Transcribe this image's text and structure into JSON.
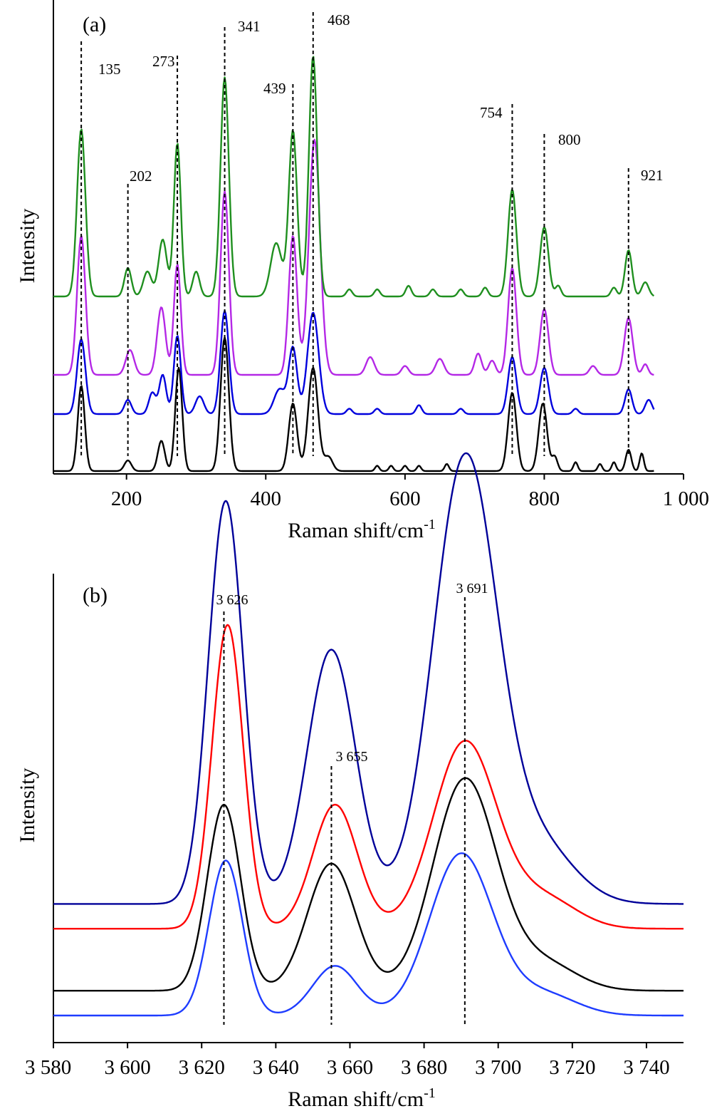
{
  "chart_data": [
    {
      "type": "line",
      "panel_label": "(a)",
      "xlabel": "Raman shift/cm",
      "xlabel_sup": "-1",
      "ylabel": "Intensity",
      "xlim": [
        95,
        1000
      ],
      "xticks": [
        200,
        400,
        600,
        800,
        1000
      ],
      "xtick_labels": [
        "200",
        "400",
        "600",
        "800",
        "1 000"
      ],
      "peak_marks": [
        {
          "x": 135,
          "label": "135"
        },
        {
          "x": 202,
          "label": "202"
        },
        {
          "x": 273,
          "label": "273"
        },
        {
          "x": 341,
          "label": "341"
        },
        {
          "x": 439,
          "label": "439"
        },
        {
          "x": 468,
          "label": "468"
        },
        {
          "x": 754,
          "label": "754"
        },
        {
          "x": 800,
          "label": "800"
        },
        {
          "x": 921,
          "label": "921"
        }
      ],
      "series": [
        {
          "color": "#000000",
          "baseline": 0.0,
          "peaks": [
            [
              135,
              0.48,
              5
            ],
            [
              202,
              0.06,
              5
            ],
            [
              250,
              0.17,
              5
            ],
            [
              275,
              0.58,
              5
            ],
            [
              341,
              0.75,
              6
            ],
            [
              439,
              0.38,
              6
            ],
            [
              468,
              0.58,
              7
            ],
            [
              490,
              0.08,
              6
            ],
            [
              560,
              0.03,
              3
            ],
            [
              580,
              0.03,
              3
            ],
            [
              600,
              0.03,
              3
            ],
            [
              620,
              0.03,
              3
            ],
            [
              660,
              0.04,
              3
            ],
            [
              754,
              0.44,
              6
            ],
            [
              798,
              0.38,
              6
            ],
            [
              815,
              0.08,
              4
            ],
            [
              845,
              0.05,
              3
            ],
            [
              880,
              0.04,
              3
            ],
            [
              900,
              0.05,
              3
            ],
            [
              921,
              0.12,
              4
            ],
            [
              940,
              0.1,
              3
            ],
            [
              965,
              0.04,
              3
            ]
          ]
        },
        {
          "color": "#0000dd",
          "baseline": 0.32,
          "peaks": [
            [
              135,
              0.42,
              6
            ],
            [
              202,
              0.08,
              5
            ],
            [
              237,
              0.12,
              5
            ],
            [
              252,
              0.22,
              5
            ],
            [
              273,
              0.44,
              5
            ],
            [
              305,
              0.1,
              6
            ],
            [
              341,
              0.58,
              6
            ],
            [
              420,
              0.14,
              8
            ],
            [
              439,
              0.37,
              6
            ],
            [
              468,
              0.57,
              8
            ],
            [
              520,
              0.03,
              4
            ],
            [
              560,
              0.03,
              4
            ],
            [
              620,
              0.05,
              4
            ],
            [
              680,
              0.03,
              4
            ],
            [
              754,
              0.32,
              6
            ],
            [
              800,
              0.26,
              6
            ],
            [
              845,
              0.03,
              4
            ],
            [
              921,
              0.14,
              5
            ],
            [
              950,
              0.08,
              5
            ],
            [
              980,
              0.05,
              5
            ]
          ]
        },
        {
          "color": "#b428e6",
          "baseline": 0.54,
          "peaks": [
            [
              135,
              0.78,
              6
            ],
            [
              205,
              0.14,
              6
            ],
            [
              250,
              0.38,
              6
            ],
            [
              273,
              0.62,
              5
            ],
            [
              341,
              1.03,
              6
            ],
            [
              439,
              0.78,
              6
            ],
            [
              470,
              1.32,
              8
            ],
            [
              550,
              0.1,
              6
            ],
            [
              600,
              0.05,
              5
            ],
            [
              650,
              0.09,
              6
            ],
            [
              705,
              0.12,
              5
            ],
            [
              725,
              0.08,
              5
            ],
            [
              754,
              0.6,
              6
            ],
            [
              800,
              0.37,
              6
            ],
            [
              870,
              0.05,
              5
            ],
            [
              921,
              0.32,
              6
            ],
            [
              945,
              0.06,
              4
            ]
          ]
        },
        {
          "color": "#1f8f1f",
          "baseline": 0.98,
          "peaks": [
            [
              135,
              0.94,
              6
            ],
            [
              202,
              0.16,
              5
            ],
            [
              230,
              0.14,
              6
            ],
            [
              252,
              0.32,
              6
            ],
            [
              273,
              0.86,
              5
            ],
            [
              300,
              0.14,
              5
            ],
            [
              341,
              1.23,
              6
            ],
            [
              415,
              0.3,
              8
            ],
            [
              439,
              0.93,
              6
            ],
            [
              468,
              1.35,
              6
            ],
            [
              520,
              0.04,
              4
            ],
            [
              560,
              0.04,
              4
            ],
            [
              605,
              0.06,
              4
            ],
            [
              640,
              0.04,
              4
            ],
            [
              680,
              0.04,
              4
            ],
            [
              715,
              0.05,
              4
            ],
            [
              754,
              0.6,
              6
            ],
            [
              800,
              0.39,
              6
            ],
            [
              820,
              0.06,
              4
            ],
            [
              900,
              0.05,
              4
            ],
            [
              921,
              0.26,
              5
            ],
            [
              945,
              0.08,
              5
            ],
            [
              995,
              0.04,
              4
            ]
          ]
        }
      ]
    },
    {
      "type": "line",
      "panel_label": "(b)",
      "xlabel": "Raman shift/cm",
      "xlabel_sup": "-1",
      "ylabel": "Intensity",
      "xlim": [
        3580,
        3750
      ],
      "xticks": [
        3580,
        3600,
        3620,
        3640,
        3660,
        3680,
        3700,
        3720,
        3740
      ],
      "xtick_labels": [
        "3 580",
        "3 600",
        "3 620",
        "3 640",
        "3 660",
        "3 680",
        "3 700",
        "3 720",
        "3 740"
      ],
      "peak_marks": [
        {
          "x": 3626,
          "label": "3 626"
        },
        {
          "x": 3655,
          "label": "3 655"
        },
        {
          "x": 3691,
          "label": "3 691"
        }
      ],
      "series": [
        {
          "color": "#1e3cff",
          "baseline": 0.0,
          "peaks": [
            [
              3626.5,
              0.5,
              4.5
            ],
            [
              3656,
              0.16,
              6
            ],
            [
              3690,
              0.52,
              8.5
            ],
            [
              3712,
              0.07,
              9
            ]
          ]
        },
        {
          "color": "#000000",
          "baseline": 0.08,
          "peaks": [
            [
              3626,
              0.6,
              4.5
            ],
            [
              3655,
              0.41,
              6.5
            ],
            [
              3691,
              0.68,
              8.5
            ],
            [
              3712,
              0.09,
              9
            ]
          ]
        },
        {
          "color": "#ff0000",
          "baseline": 0.28,
          "peaks": [
            [
              3627,
              0.98,
              4.2
            ],
            [
              3656,
              0.4,
              6
            ],
            [
              3691,
              0.6,
              8.5
            ],
            [
              3712,
              0.1,
              9
            ]
          ]
        },
        {
          "color": "#000099",
          "baseline": 0.36,
          "peaks": [
            [
              3626.5,
              1.3,
              4.7
            ],
            [
              3655,
              0.82,
              6.5
            ],
            [
              3691,
              1.42,
              8.5
            ],
            [
              3710,
              0.2,
              10
            ]
          ]
        }
      ]
    }
  ]
}
